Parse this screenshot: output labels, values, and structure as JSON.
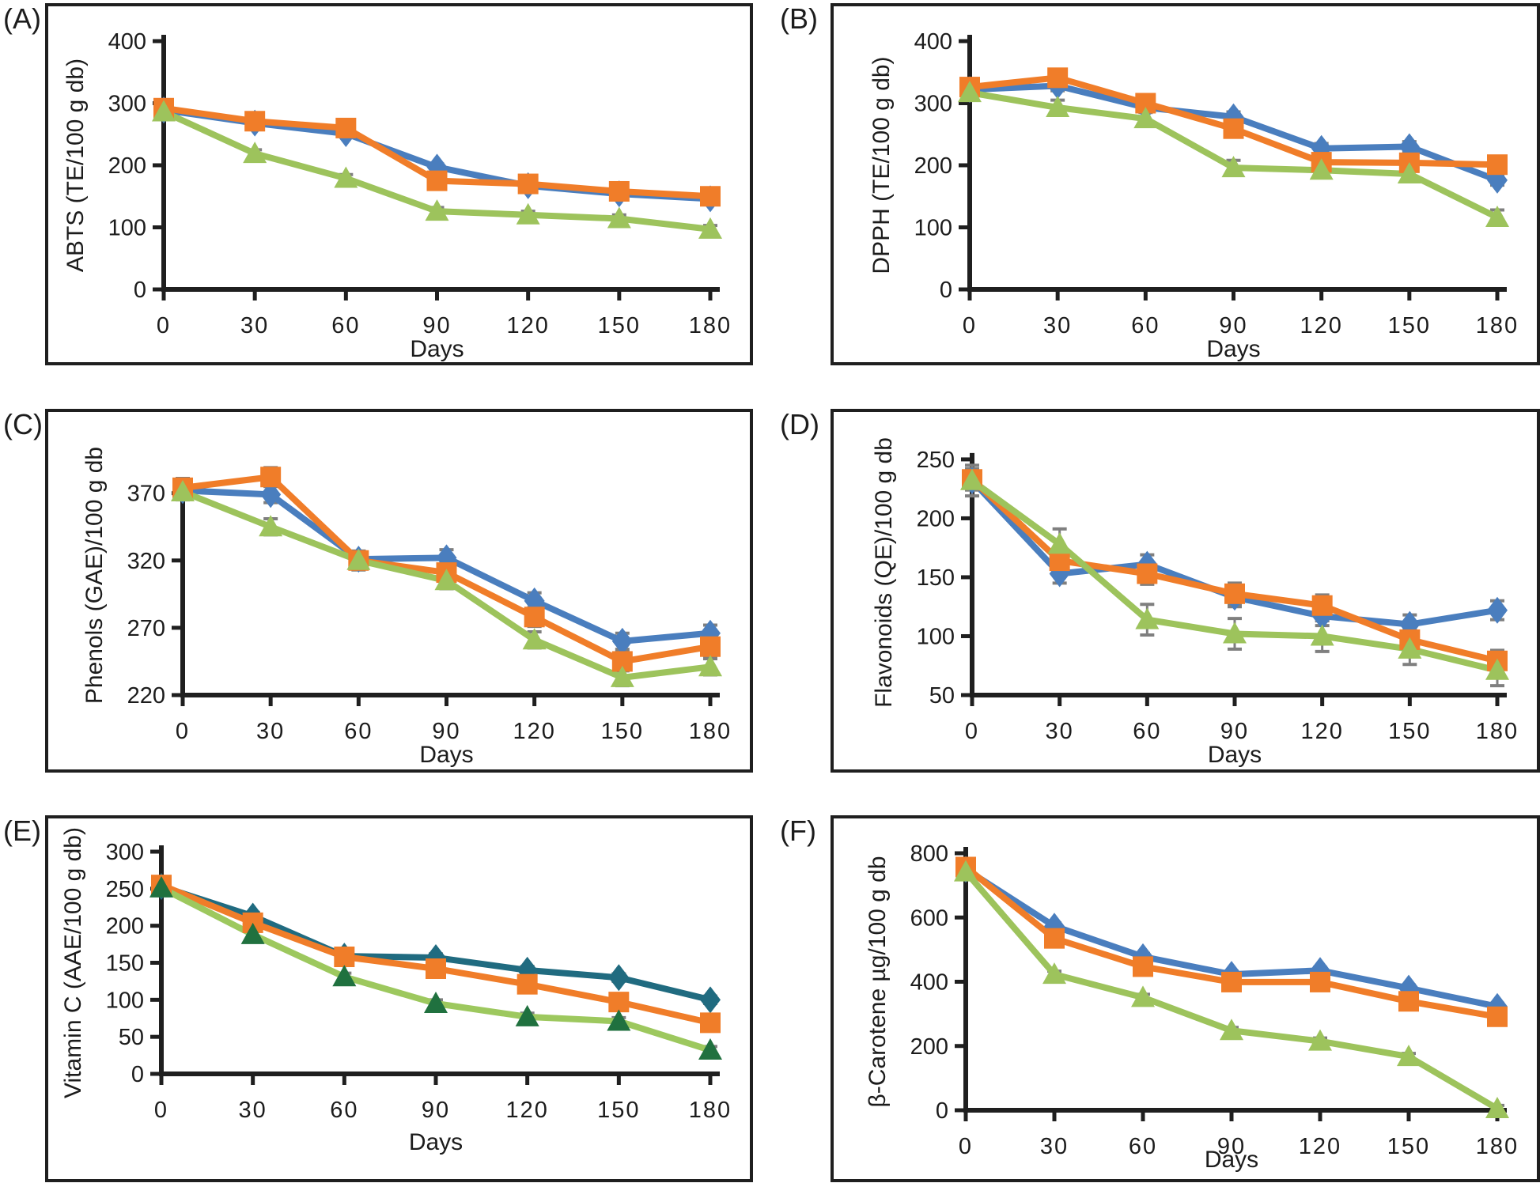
{
  "figure": {
    "xlabel": "Days",
    "x_unit": "days"
  },
  "chart_data": {
    "type": "line",
    "x": [
      0,
      30,
      60,
      90,
      120,
      150,
      180
    ],
    "xlabel": "Days",
    "grid": "off",
    "legend": "none",
    "error_bar_color": "#7f7f7f",
    "panels": [
      {
        "label": "(A)",
        "ylabel": "ABTS (TE/100 g db)",
        "ylim": [
          0,
          400
        ],
        "yticks": [
          0,
          100,
          200,
          300,
          400
        ],
        "series": [
          {
            "name": "series-1-blue-diamond",
            "marker": "diamond",
            "color": "#4A7EBE",
            "line_color": "#4A7EBE",
            "error": 5,
            "values": [
              289,
              268,
              251,
              197,
              167,
              154,
              146
            ]
          },
          {
            "name": "series-2-orange-square",
            "marker": "square",
            "color": "#F07D29",
            "line_color": "#F07D29",
            "error": 5,
            "values": [
              292,
              271,
              260,
              175,
              170,
              158,
              150
            ]
          },
          {
            "name": "series-3-green-triangle",
            "marker": "triangle",
            "color": "#9DC35C",
            "line_color": "#9DC35C",
            "error": 6,
            "values": [
              286,
              219,
              179,
              126,
              120,
              114,
              97
            ]
          }
        ]
      },
      {
        "label": "(B)",
        "ylabel": "DPPH (TE/100 g db)",
        "ylim": [
          0,
          400
        ],
        "yticks": [
          0,
          100,
          200,
          300,
          400
        ],
        "series": [
          {
            "name": "series-1-blue-diamond",
            "marker": "diamond",
            "color": "#4A7EBE",
            "line_color": "#4A7EBE",
            "error": 8,
            "values": [
              322,
              328,
              293,
              278,
              227,
              230,
              176
            ]
          },
          {
            "name": "series-2-orange-square",
            "marker": "square",
            "color": "#F07D29",
            "line_color": "#F07D29",
            "error": 8,
            "values": [
              326,
              341,
              300,
              259,
              205,
              204,
              201
            ]
          },
          {
            "name": "series-3-green-triangle",
            "marker": "triangle",
            "color": "#9DC35C",
            "line_color": "#9DC35C",
            "error": 12,
            "values": [
              317,
              293,
              275,
              196,
              192,
              186,
              116
            ]
          }
        ]
      },
      {
        "label": "(C)",
        "ylabel": "Phenols (GAE)/100 g db",
        "ylim": [
          220,
          398
        ],
        "yticks": [
          220,
          270,
          320,
          370
        ],
        "series": [
          {
            "name": "series-1-blue-diamond",
            "marker": "diamond",
            "color": "#4A7EBE",
            "line_color": "#4A7EBE",
            "error": 6,
            "values": [
              372,
              369,
              321,
              322,
              290,
              260,
              266
            ]
          },
          {
            "name": "series-2-orange-square",
            "marker": "square",
            "color": "#F07D29",
            "line_color": "#F07D29",
            "error": 7,
            "values": [
              374,
              382,
              320,
              311,
              278,
              245,
              256
            ]
          },
          {
            "name": "series-3-green-triangle",
            "marker": "triangle",
            "color": "#9DC35C",
            "line_color": "#9DC35C",
            "error": 6,
            "values": [
              371,
              345,
              320,
              305,
              261,
              233,
              241
            ]
          }
        ]
      },
      {
        "label": "(D)",
        "ylabel": "Flavonoids (QE)/100 g db",
        "ylim": [
          50,
          258
        ],
        "yticks": [
          50,
          100,
          150,
          200,
          250
        ],
        "series": [
          {
            "name": "series-1-blue-diamond",
            "marker": "diamond",
            "color": "#4A7EBE",
            "line_color": "#4A7EBE",
            "error": 8,
            "values": [
              232,
              153,
              161,
              133,
              117,
              110,
              122
            ]
          },
          {
            "name": "series-2-orange-square",
            "marker": "square",
            "color": "#F07D29",
            "line_color": "#F07D29",
            "error": 9,
            "values": [
              233,
              164,
              153,
              136,
              126,
              97,
              79
            ]
          },
          {
            "name": "series-3-green-triangle",
            "marker": "triangle",
            "color": "#9DC35C",
            "line_color": "#9DC35C",
            "error": 13,
            "values": [
              232,
              178,
              114,
              102,
              100,
              89,
              71
            ]
          }
        ]
      },
      {
        "label": "(E)",
        "ylabel": "Vitamin C (AAE/100 g db)",
        "ylim": [
          0,
          300
        ],
        "yticks": [
          0,
          50,
          100,
          150,
          200,
          250,
          300
        ],
        "series": [
          {
            "name": "series-1-teal-diamond",
            "marker": "diamond",
            "color": "#206B80",
            "line_color": "#206B80",
            "error": 5,
            "values": [
              253,
              213,
              159,
              157,
              140,
              130,
              100
            ]
          },
          {
            "name": "series-2-orange-square",
            "marker": "square",
            "color": "#F07D29",
            "line_color": "#F07D29",
            "error": 5,
            "values": [
              255,
              204,
              158,
              142,
              121,
              97,
              69
            ]
          },
          {
            "name": "series-3-darkgreen-triangle",
            "marker": "triangle",
            "color": "#20713F",
            "line_color": "#9DC85E",
            "error": 5,
            "values": [
              251,
              188,
              131,
              95,
              77,
              71,
              32
            ]
          }
        ]
      },
      {
        "label": "(F)",
        "ylabel": "β-Carotene µg/100 g db",
        "ylim": [
          0,
          800
        ],
        "yticks": [
          0,
          200,
          400,
          600,
          800
        ],
        "series": [
          {
            "name": "series-1-blue-diamond",
            "marker": "diamond",
            "color": "#4A7EBE",
            "line_color": "#4A7EBE",
            "error": 10,
            "values": [
              750,
              573,
              478,
              423,
              435,
              380,
              323
            ]
          },
          {
            "name": "series-2-orange-square",
            "marker": "square",
            "color": "#F07D29",
            "line_color": "#F07D29",
            "error": 10,
            "values": [
              757,
              535,
              447,
              399,
              399,
              339,
              291
            ]
          },
          {
            "name": "series-3-green-triangle",
            "marker": "triangle",
            "color": "#9DC35C",
            "line_color": "#9DC35C",
            "error": 10,
            "values": [
              742,
              423,
              351,
              248,
              215,
              167,
              5
            ]
          }
        ]
      }
    ]
  }
}
